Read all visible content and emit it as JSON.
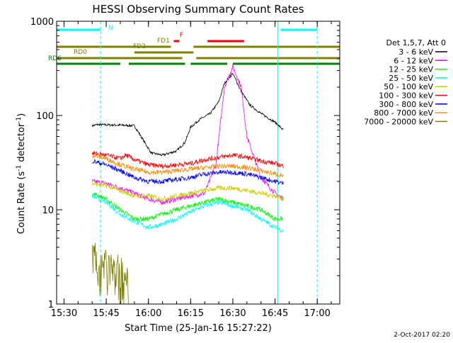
{
  "chart_data": {
    "type": "line",
    "title": "HESSI Observing Summary Count Rates",
    "xlabel": "Start Time (25-Jan-16 15:27:22)",
    "ylabel_parts": [
      "Count Rate (s",
      "-1",
      " detector",
      "-1",
      ")"
    ],
    "yscale": "log",
    "ylim": [
      1,
      1000
    ],
    "xlim": [
      "15:27:22",
      "17:08:00"
    ],
    "xticks": [
      "15:30",
      "15:45",
      "16:00",
      "16:15",
      "16:30",
      "16:45",
      "17:00"
    ],
    "yticks": [
      "1",
      "10",
      "100",
      "1000"
    ],
    "footer": "2-Oct-2017 02:20",
    "legend_title": "Det 1,5,7, Att 0",
    "legend_position": "right",
    "series": [
      {
        "name": "3 - 6 keV",
        "color": "#000000",
        "x": [
          "15:40",
          "15:42",
          "15:50",
          "15:55",
          "16:01",
          "16:05",
          "16:10",
          "16:13",
          "16:15",
          "16:18",
          "16:22",
          "16:25",
          "16:27",
          "16:30",
          "16:33",
          "16:36",
          "16:40",
          "16:45",
          "16:48"
        ],
        "y": [
          78,
          80,
          79,
          78,
          40,
          38,
          42,
          52,
          75,
          90,
          105,
          140,
          220,
          280,
          180,
          130,
          105,
          85,
          70
        ]
      },
      {
        "name": "6 - 12 keV",
        "color": "#ff00ff",
        "x": [
          "15:40",
          "15:45",
          "15:50",
          "15:55",
          "16:00",
          "16:05",
          "16:10",
          "16:15",
          "16:20",
          "16:24",
          "16:27",
          "16:30",
          "16:33",
          "16:35",
          "16:40",
          "16:45",
          "16:48"
        ],
        "y": [
          20,
          19,
          17,
          15,
          13,
          12,
          13,
          14,
          15,
          30,
          200,
          330,
          200,
          60,
          22,
          15,
          13
        ]
      },
      {
        "name": "12 - 25 keV",
        "color": "#00ff00",
        "x": [
          "15:40",
          "15:45",
          "15:50",
          "15:55",
          "16:00",
          "16:05",
          "16:10",
          "16:15",
          "16:20",
          "16:25",
          "16:30",
          "16:35",
          "16:40",
          "16:45",
          "16:48"
        ],
        "y": [
          15,
          13,
          10,
          8,
          8,
          9,
          10,
          11,
          12,
          13,
          12,
          11,
          10,
          8,
          8
        ]
      },
      {
        "name": "25 - 50 keV",
        "color": "#00ffff",
        "x": [
          "15:40",
          "15:45",
          "15:50",
          "15:55",
          "16:00",
          "16:05",
          "16:10",
          "16:15",
          "16:20",
          "16:25",
          "16:30",
          "16:35",
          "16:40",
          "16:45",
          "16:48"
        ],
        "y": [
          14,
          12,
          9,
          7.5,
          6.5,
          7,
          8,
          9.5,
          11,
          12,
          11,
          10,
          8,
          6.5,
          6
        ]
      },
      {
        "name": "50 - 100 keV",
        "color": "#cccc00",
        "x": [
          "15:40",
          "15:45",
          "15:50",
          "15:55",
          "16:00",
          "16:05",
          "16:10",
          "16:15",
          "16:20",
          "16:25",
          "16:30",
          "16:35",
          "16:40",
          "16:45",
          "16:48"
        ],
        "y": [
          19,
          18,
          16,
          14,
          14,
          13,
          14,
          15,
          16,
          17,
          17,
          16,
          15,
          14,
          13
        ]
      },
      {
        "name": "100 - 300 keV",
        "color": "#ff0000",
        "x": [
          "15:40",
          "15:45",
          "15:50",
          "15:52",
          "15:55",
          "16:00",
          "16:05",
          "16:10",
          "16:15",
          "16:20",
          "16:25",
          "16:30",
          "16:35",
          "16:40",
          "16:45",
          "16:48"
        ],
        "y": [
          40,
          38,
          35,
          38,
          34,
          30,
          29,
          30,
          31,
          34,
          36,
          38,
          36,
          33,
          31,
          29
        ]
      },
      {
        "name": "300 - 800 keV",
        "color": "#0000ff",
        "x": [
          "15:40",
          "15:45",
          "15:50",
          "15:55",
          "16:00",
          "16:05",
          "16:10",
          "16:15",
          "16:20",
          "16:25",
          "16:30",
          "16:35",
          "16:40",
          "16:45",
          "16:48"
        ],
        "y": [
          33,
          30,
          26,
          22,
          20,
          20,
          21,
          22,
          24,
          25,
          25,
          24,
          22,
          20,
          19
        ]
      },
      {
        "name": "800 - 7000 keV",
        "color": "#ff8800",
        "x": [
          "15:40",
          "15:45",
          "15:50",
          "15:55",
          "16:00",
          "16:05",
          "16:10",
          "16:15",
          "16:20",
          "16:25",
          "16:30",
          "16:35",
          "16:40",
          "16:45",
          "16:48"
        ],
        "y": [
          38,
          35,
          30,
          27,
          25,
          25,
          26,
          27,
          28,
          29,
          29,
          28,
          26,
          24,
          23
        ]
      },
      {
        "name": "7000 - 20000 keV",
        "color": "#808000",
        "x": [
          "15:40",
          "15:41",
          "15:43",
          "15:45",
          "15:47",
          "15:49",
          "15:51",
          "15:53"
        ],
        "y": [
          3.5,
          3.5,
          3,
          3.2,
          2.8,
          2.5,
          2.2,
          2
        ]
      }
    ],
    "status_bars": [
      {
        "label": "N",
        "color": "#00ffff",
        "segments": [
          [
            "15:27:22",
            "15:43"
          ],
          [
            "16:47",
            "17:00"
          ]
        ]
      },
      {
        "label": "F",
        "color": "#ff0000",
        "segments": [
          [
            "16:09",
            "16:11"
          ],
          [
            "16:21",
            "16:34"
          ]
        ]
      },
      {
        "label": "FD1",
        "color": "#808000",
        "segments": [
          [
            "15:27:22",
            "16:08"
          ],
          [
            "16:16",
            "17:08:00"
          ]
        ]
      },
      {
        "label": "FD2",
        "color": "#808000",
        "segments": [
          [
            "15:55",
            "16:16"
          ]
        ]
      },
      {
        "label": "RD0",
        "color": "#808000",
        "segments": [
          [
            "15:27:22",
            "16:12"
          ],
          [
            "16:17",
            "17:08:00"
          ]
        ]
      },
      {
        "label": "RD6",
        "color": "#008000",
        "segments": [
          [
            "15:27:22",
            "15:50"
          ],
          [
            "15:53",
            "16:13"
          ],
          [
            "16:15",
            "16:28"
          ],
          [
            "16:30",
            "17:08:00"
          ]
        ]
      }
    ],
    "vlines": [
      {
        "x": "15:27:22",
        "color": "#00ffff",
        "style": "solid"
      },
      {
        "x": "15:43",
        "color": "#00ffff",
        "style": "dashed"
      },
      {
        "x": "16:46",
        "color": "#00ffff",
        "style": "solid"
      },
      {
        "x": "17:00",
        "color": "#00ffff",
        "style": "dashed"
      }
    ],
    "data_gaps": [
      [
        "15:27:22",
        "15:39"
      ],
      [
        "16:50",
        "17:08:00"
      ]
    ]
  }
}
